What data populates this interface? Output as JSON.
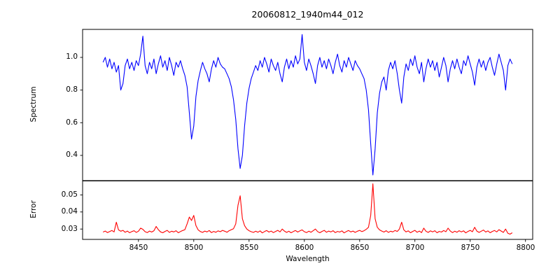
{
  "figure": {
    "background": "#ffffff",
    "axis_color": "#000000"
  },
  "chart_data": {
    "type": "line",
    "title": "20060812_1940m44_012",
    "xlabel": "Wavelength",
    "grid": false,
    "legend": "none",
    "xlim": [
      8399.5,
      8806.5
    ],
    "xticks": [
      8450,
      8500,
      8550,
      8600,
      8650,
      8700,
      8750,
      8800
    ],
    "xtick_labels": [
      "8450",
      "8500",
      "8550",
      "8600",
      "8650",
      "8700",
      "8750",
      "8800"
    ],
    "x_start": 8418,
    "x_step": 2,
    "panels": [
      {
        "name": "spectrum",
        "ylabel": "Spectrum",
        "line_color": "#0000ff",
        "ylim": [
          0.2457,
          1.1714
        ],
        "yticks": [
          1.0,
          0.8,
          0.6,
          0.4
        ],
        "ytick_labels": [
          "1.0",
          "0.8",
          "0.6",
          "0.4"
        ],
        "absorption_line_centers": [
          8498,
          8542,
          8662
        ],
        "values": [
          0.97,
          1.0,
          0.94,
          0.99,
          0.93,
          0.97,
          0.91,
          0.95,
          0.8,
          0.84,
          0.95,
          0.99,
          0.93,
          0.97,
          0.92,
          0.98,
          0.95,
          1.02,
          1.13,
          0.95,
          0.9,
          0.97,
          0.93,
          0.99,
          0.9,
          0.96,
          1.01,
          0.94,
          0.98,
          0.92,
          1.0,
          0.95,
          0.89,
          0.97,
          0.94,
          0.98,
          0.93,
          0.89,
          0.82,
          0.66,
          0.5,
          0.58,
          0.76,
          0.86,
          0.92,
          0.97,
          0.93,
          0.9,
          0.85,
          0.93,
          0.98,
          0.94,
          1.0,
          0.96,
          0.94,
          0.93,
          0.9,
          0.87,
          0.82,
          0.74,
          0.62,
          0.44,
          0.32,
          0.4,
          0.58,
          0.72,
          0.81,
          0.87,
          0.91,
          0.95,
          0.92,
          0.98,
          0.94,
          1.0,
          0.96,
          0.91,
          0.99,
          0.95,
          0.92,
          0.97,
          0.9,
          0.85,
          0.94,
          0.99,
          0.93,
          0.98,
          0.94,
          1.01,
          0.96,
          0.99,
          1.14,
          0.97,
          0.92,
          0.99,
          0.95,
          0.9,
          0.84,
          0.95,
          1.0,
          0.94,
          0.98,
          0.93,
          0.99,
          0.95,
          0.9,
          0.97,
          1.02,
          0.95,
          0.91,
          0.98,
          0.94,
          1.0,
          0.96,
          0.92,
          0.98,
          0.95,
          0.93,
          0.9,
          0.87,
          0.8,
          0.68,
          0.47,
          0.28,
          0.44,
          0.66,
          0.78,
          0.85,
          0.88,
          0.8,
          0.92,
          0.97,
          0.93,
          0.98,
          0.9,
          0.8,
          0.72,
          0.88,
          0.96,
          0.92,
          0.99,
          0.95,
          1.01,
          0.94,
          0.9,
          0.97,
          0.85,
          0.93,
          0.99,
          0.94,
          0.98,
          0.92,
          0.97,
          0.88,
          0.94,
          1.0,
          0.95,
          0.85,
          0.93,
          0.98,
          0.93,
          0.99,
          0.94,
          0.9,
          0.98,
          0.95,
          1.01,
          0.96,
          0.91,
          0.83,
          0.94,
          0.99,
          0.94,
          0.98,
          0.92,
          0.97,
          1.0,
          0.94,
          0.89,
          0.96,
          1.02,
          0.97,
          0.92,
          0.8,
          0.95,
          0.99,
          0.96
        ]
      },
      {
        "name": "error",
        "ylabel": "Error",
        "line_color": "#ff0000",
        "ylim": [
          0.0239,
          0.0582
        ],
        "yticks": [
          0.05,
          0.04,
          0.03
        ],
        "ytick_labels": [
          "0.05",
          "0.04",
          "0.03"
        ],
        "peak_centers": [
          8498,
          8542,
          8662
        ],
        "values": [
          0.0282,
          0.0288,
          0.0279,
          0.0285,
          0.0291,
          0.0283,
          0.034,
          0.0295,
          0.0287,
          0.0292,
          0.0281,
          0.0288,
          0.0278,
          0.0285,
          0.029,
          0.028,
          0.0287,
          0.0305,
          0.0298,
          0.0284,
          0.0279,
          0.0288,
          0.0282,
          0.029,
          0.0315,
          0.0296,
          0.0283,
          0.0278,
          0.0286,
          0.0292,
          0.028,
          0.0287,
          0.0283,
          0.029,
          0.0278,
          0.0285,
          0.0291,
          0.0296,
          0.033,
          0.037,
          0.035,
          0.038,
          0.032,
          0.0295,
          0.0285,
          0.028,
          0.0288,
          0.0283,
          0.0291,
          0.0279,
          0.0286,
          0.0281,
          0.0289,
          0.0284,
          0.0292,
          0.0287,
          0.0281,
          0.029,
          0.0296,
          0.0302,
          0.033,
          0.044,
          0.0495,
          0.036,
          0.032,
          0.03,
          0.029,
          0.0284,
          0.028,
          0.0287,
          0.0281,
          0.0289,
          0.0277,
          0.0285,
          0.0291,
          0.0282,
          0.0288,
          0.0279,
          0.0286,
          0.0292,
          0.0283,
          0.03,
          0.0288,
          0.028,
          0.0287,
          0.0278,
          0.0285,
          0.0291,
          0.0282,
          0.0289,
          0.0295,
          0.0284,
          0.0279,
          0.0287,
          0.0281,
          0.029,
          0.03,
          0.0285,
          0.0278,
          0.0286,
          0.0292,
          0.0281,
          0.0288,
          0.0283,
          0.029,
          0.0279,
          0.0286,
          0.0282,
          0.0289,
          0.0277,
          0.0285,
          0.0291,
          0.0283,
          0.0288,
          0.028,
          0.0287,
          0.0292,
          0.0285,
          0.029,
          0.0298,
          0.031,
          0.038,
          0.0565,
          0.036,
          0.031,
          0.0295,
          0.0288,
          0.0282,
          0.029,
          0.028,
          0.0287,
          0.0283,
          0.0291,
          0.0286,
          0.03,
          0.034,
          0.0295,
          0.0283,
          0.0289,
          0.0278,
          0.0286,
          0.0292,
          0.0281,
          0.0288,
          0.0279,
          0.0305,
          0.0287,
          0.028,
          0.0289,
          0.0283,
          0.029,
          0.0278,
          0.0286,
          0.0282,
          0.0291,
          0.0284,
          0.0305,
          0.0288,
          0.0279,
          0.0287,
          0.0281,
          0.029,
          0.0283,
          0.0289,
          0.0277,
          0.0286,
          0.0292,
          0.0284,
          0.031,
          0.0288,
          0.028,
          0.0287,
          0.0294,
          0.0282,
          0.0289,
          0.0278,
          0.0286,
          0.0291,
          0.0283,
          0.0296,
          0.0288,
          0.028,
          0.03,
          0.0275,
          0.027,
          0.0278
        ]
      }
    ]
  }
}
